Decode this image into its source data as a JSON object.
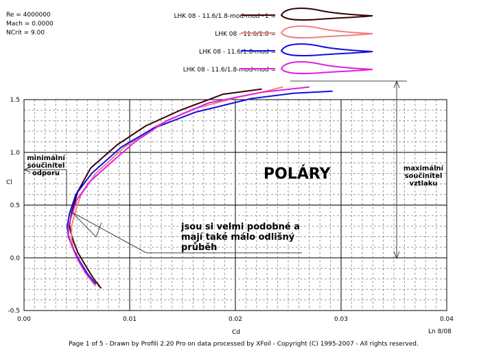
{
  "chart_data": {
    "type": "line",
    "info": [
      "Re = 4000000",
      "Mach = 0.0000",
      "NCrit = 9.00"
    ],
    "title": "POLÁRY",
    "xlabel": "Cd",
    "ylabel": "Cl",
    "xlim": [
      0,
      0.04
    ],
    "ylim": [
      -0.5,
      1.5
    ],
    "x_ticks": [
      "0.00",
      "0.01",
      "0.02",
      "0.03",
      "0.04"
    ],
    "y_ticks": [
      "1.5",
      "1.0",
      "0.5",
      "0.0",
      "-0.5"
    ],
    "grid": true,
    "legend_position": "top",
    "series": [
      {
        "name": "LHK 08 - 11.6/1.8-mod-mod~1 =",
        "color": "#3a0000",
        "x": [
          0.0073,
          0.0066,
          0.0058,
          0.0051,
          0.0047,
          0.0044,
          0.0043,
          0.0045,
          0.0051,
          0.0063,
          0.0088,
          0.0115,
          0.0148,
          0.0188,
          0.0225
        ],
        "y": [
          -0.29,
          -0.2,
          -0.07,
          0.05,
          0.15,
          0.25,
          0.31,
          0.43,
          0.63,
          0.85,
          1.07,
          1.25,
          1.4,
          1.55,
          1.6
        ]
      },
      {
        "name": "LHK 08 - 11.6/1.8 =",
        "color": "#f08080",
        "x": [
          0.0068,
          0.006,
          0.0052,
          0.0047,
          0.0045,
          0.0045,
          0.0048,
          0.0054,
          0.0068,
          0.0095,
          0.0125,
          0.016,
          0.0205,
          0.0225,
          0.0245
        ],
        "y": [
          -0.27,
          -0.17,
          -0.04,
          0.07,
          0.18,
          0.3,
          0.42,
          0.6,
          0.8,
          1.05,
          1.25,
          1.41,
          1.53,
          1.57,
          1.62
        ]
      },
      {
        "name": "LHK 08 - 11.6/1.8-mod =",
        "color": "#1010e0",
        "x": [
          0.0068,
          0.006,
          0.0052,
          0.0046,
          0.0042,
          0.0041,
          0.0043,
          0.0049,
          0.0064,
          0.0092,
          0.0123,
          0.0162,
          0.0215,
          0.0255,
          0.0292
        ],
        "y": [
          -0.25,
          -0.15,
          -0.02,
          0.1,
          0.2,
          0.3,
          0.42,
          0.6,
          0.8,
          1.05,
          1.23,
          1.38,
          1.51,
          1.56,
          1.58
        ]
      },
      {
        "name": "LHK 08 - 11.6/1.8-mod-mod =",
        "color": "#e020e0",
        "x": [
          0.0066,
          0.0058,
          0.005,
          0.0045,
          0.0042,
          0.0042,
          0.0045,
          0.005,
          0.0062,
          0.0082,
          0.0105,
          0.0135,
          0.0175,
          0.0225,
          0.027
        ],
        "y": [
          -0.24,
          -0.14,
          0.0,
          0.12,
          0.22,
          0.3,
          0.4,
          0.55,
          0.72,
          0.9,
          1.1,
          1.3,
          1.47,
          1.57,
          1.62
        ]
      }
    ],
    "annotations": {
      "min_drag": [
        "minimální",
        "součinitel",
        "odporu"
      ],
      "max_lift": [
        "maximální",
        "součinitel",
        "vztlaku"
      ],
      "similar": [
        "jsou si velmi podobné a",
        "mají také málo odlišný",
        "průběh"
      ]
    },
    "corner_label": "Ln 8/08",
    "footer": "Page 1 of 5   -   Drawn by Profili 2.20 Pro on data processed by  XFoil - Copyright (C) 1995-2007 - All rights reserved."
  }
}
